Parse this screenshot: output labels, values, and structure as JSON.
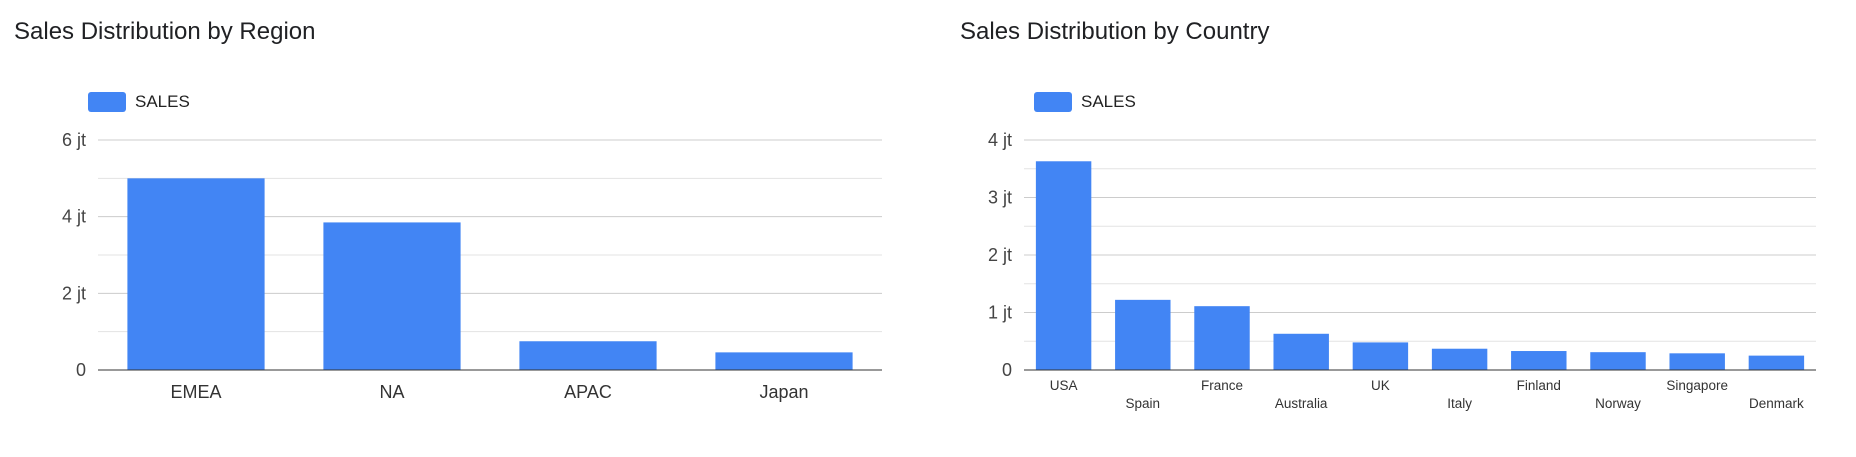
{
  "chart_data": [
    {
      "type": "bar",
      "title": "Sales Distribution by Region",
      "legend": {
        "label": "SALES",
        "position": "top-left"
      },
      "color": "#4285f4",
      "categories": [
        "EMEA",
        "NA",
        "APAC",
        "Japan"
      ],
      "values": [
        5000000,
        3850000,
        750000,
        460000
      ],
      "yticks": [
        0,
        2000000,
        4000000,
        6000000
      ],
      "ytick_labels": [
        "0",
        "2 jt",
        "4 jt",
        "6 jt"
      ],
      "ylim": [
        0,
        6000000
      ],
      "minor_gridlines": true,
      "grid": true
    },
    {
      "type": "bar",
      "title": "Sales Distribution by Country",
      "legend": {
        "label": "SALES",
        "position": "top-left"
      },
      "color": "#4285f4",
      "categories": [
        "USA",
        "Spain",
        "France",
        "Australia",
        "UK",
        "Italy",
        "Finland",
        "Norway",
        "Singapore",
        "Denmark"
      ],
      "values": [
        3630000,
        1220000,
        1110000,
        630000,
        480000,
        370000,
        330000,
        310000,
        290000,
        250000
      ],
      "yticks": [
        0,
        1000000,
        2000000,
        3000000,
        4000000
      ],
      "ytick_labels": [
        "0",
        "1 jt",
        "2 jt",
        "3 jt",
        "4 jt"
      ],
      "ylim": [
        0,
        4000000
      ],
      "minor_gridlines": true,
      "grid": true
    }
  ]
}
